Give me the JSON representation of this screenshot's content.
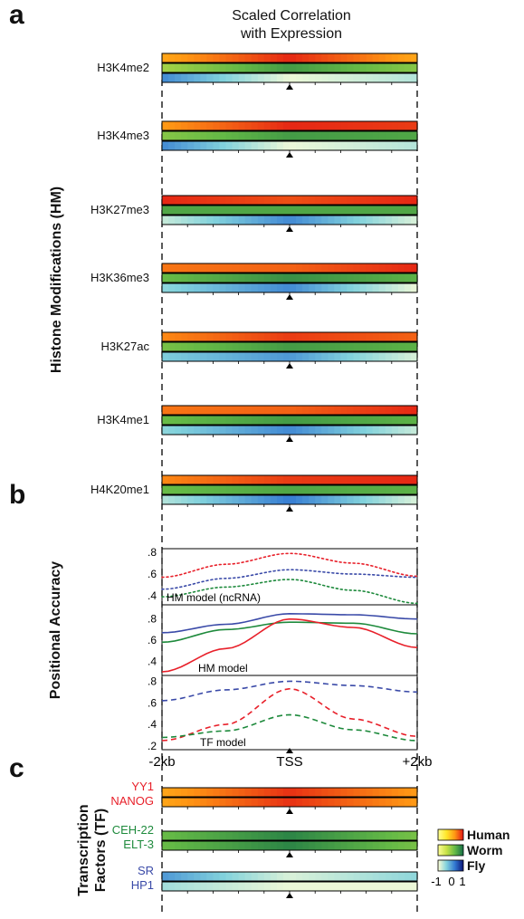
{
  "panels": {
    "a": "a",
    "b": "b",
    "c": "c"
  },
  "title_line1": "Scaled Correlation",
  "title_line2": "with Expression",
  "side_labels": {
    "hm": "Histone Modifications (HM)",
    "pa": "Positional Accuracy",
    "tf_line1": "Transcription",
    "tf_line2": "Factors (TF)"
  },
  "legend": {
    "human": "Human",
    "worm": "Worm",
    "fly": "Fly",
    "scale_ticks": [
      "-1",
      "0",
      "1"
    ]
  },
  "colors": {
    "human": "#e8202a",
    "worm": "#1e8a3c",
    "fly": "#3a4aa8"
  },
  "chart_data": [
    {
      "type": "heatmap",
      "name": "Scaled Correlation with Expression (Histone Modifications)",
      "x_range": [
        "-2kb",
        "+2kb"
      ],
      "center_marker": "TSS",
      "rows": [
        "Human",
        "Worm",
        "Fly"
      ],
      "value_range": [
        -1,
        1
      ],
      "marks": [
        {
          "label": "H3K4me2",
          "human": [
            0.2,
            0.9,
            0.2
          ],
          "worm": [
            -0.1,
            0.6,
            0.1
          ],
          "fly": [
            0.2,
            -0.9,
            -0.6
          ]
        },
        {
          "label": "H3K4me3",
          "human": [
            0.3,
            0.9,
            0.8
          ],
          "worm": [
            0.1,
            0.6,
            0.5
          ],
          "fly": [
            0.2,
            -0.9,
            -0.6
          ]
        },
        {
          "label": "H3K27me3",
          "human": [
            0.9,
            0.7,
            0.9
          ],
          "worm": [
            0.5,
            0.5,
            0.5
          ],
          "fly": [
            -0.7,
            0.2,
            -0.8
          ]
        },
        {
          "label": "H3K36me3",
          "human": [
            0.5,
            0.6,
            0.9
          ],
          "worm": [
            0.3,
            0.7,
            0.4
          ],
          "fly": [
            -0.4,
            0.2,
            -0.9
          ]
        },
        {
          "label": "H3K27ac",
          "human": [
            0.4,
            0.8,
            0.6
          ],
          "worm": [
            0.2,
            0.6,
            0.4
          ],
          "fly": [
            -0.3,
            0.1,
            -0.8
          ]
        },
        {
          "label": "H3K4me1",
          "human": [
            0.5,
            0.6,
            0.9
          ],
          "worm": [
            0.3,
            0.6,
            0.4
          ],
          "fly": [
            -0.4,
            0.2,
            -0.7
          ]
        },
        {
          "label": "H4K20me1",
          "human": [
            0.4,
            0.8,
            0.9
          ],
          "worm": [
            0.3,
            0.5,
            0.4
          ],
          "fly": [
            -0.6,
            0.3,
            -0.8
          ]
        }
      ]
    },
    {
      "type": "line",
      "name": "Positional Accuracy",
      "x_range": [
        -2,
        2
      ],
      "xticks": [
        "-2kb",
        "TSS",
        "+2kb"
      ],
      "subplots": [
        {
          "label": "HM model (ncRNA)",
          "style": "dotted",
          "ylim": [
            0.35,
            0.8
          ],
          "yticks": [
            ".8",
            ".6",
            ".4"
          ],
          "series": [
            {
              "name": "Human",
              "x": [
                -2,
                -1,
                0,
                1,
                2
              ],
              "y": [
                0.57,
                0.69,
                0.79,
                0.7,
                0.58
              ]
            },
            {
              "name": "Fly",
              "x": [
                -2,
                -1,
                0,
                1,
                2
              ],
              "y": [
                0.46,
                0.56,
                0.64,
                0.6,
                0.57
              ]
            },
            {
              "name": "Worm",
              "x": [
                -2,
                -1,
                0,
                1,
                2
              ],
              "y": [
                0.39,
                0.48,
                0.55,
                0.45,
                0.33
              ]
            }
          ]
        },
        {
          "label": "HM model",
          "style": "solid",
          "ylim": [
            0.3,
            0.9
          ],
          "yticks": [
            ".8",
            ".6",
            ".4"
          ],
          "series": [
            {
              "name": "Fly",
              "x": [
                -2,
                -1,
                0,
                1,
                2
              ],
              "y": [
                0.67,
                0.75,
                0.85,
                0.84,
                0.8
              ]
            },
            {
              "name": "Worm",
              "x": [
                -2,
                -1,
                0,
                1,
                2
              ],
              "y": [
                0.58,
                0.7,
                0.77,
                0.76,
                0.66
              ]
            },
            {
              "name": "Human",
              "x": [
                -2,
                -1,
                0,
                1,
                2
              ],
              "y": [
                0.3,
                0.52,
                0.8,
                0.72,
                0.53
              ]
            }
          ]
        },
        {
          "label": "TF model",
          "style": "dashed",
          "ylim": [
            0.2,
            0.82
          ],
          "yticks": [
            ".8",
            ".6",
            ".4",
            ".2"
          ],
          "series": [
            {
              "name": "Fly",
              "x": [
                -2,
                -1,
                0,
                1,
                2
              ],
              "y": [
                0.62,
                0.72,
                0.8,
                0.76,
                0.7
              ]
            },
            {
              "name": "Human",
              "x": [
                -2,
                -1,
                0,
                1,
                2
              ],
              "y": [
                0.25,
                0.4,
                0.73,
                0.45,
                0.29
              ]
            },
            {
              "name": "Worm",
              "x": [
                -2,
                -1,
                0,
                1,
                2
              ],
              "y": [
                0.28,
                0.34,
                0.49,
                0.35,
                0.25
              ]
            }
          ]
        }
      ]
    },
    {
      "type": "heatmap",
      "name": "Transcription Factors (TF)",
      "center_marker": "TSS",
      "value_range": [
        -1,
        1
      ],
      "marks": [
        {
          "label1": "YY1",
          "label2": "NANOG",
          "species": "human",
          "top": [
            0.2,
            0.85,
            0.3
          ],
          "bottom": [
            0.2,
            0.85,
            0.3
          ]
        },
        {
          "label1": "CEH-22",
          "label2": "ELT-3",
          "species": "worm",
          "top": [
            0.3,
            0.8,
            0.2
          ],
          "bottom": [
            0.3,
            0.8,
            0.2
          ]
        },
        {
          "label1": "SR",
          "label2": "HP1",
          "species": "fly",
          "top": [
            0.1,
            -0.8,
            -0.4
          ],
          "bottom": [
            -0.5,
            -0.9,
            -0.9
          ]
        }
      ]
    }
  ]
}
